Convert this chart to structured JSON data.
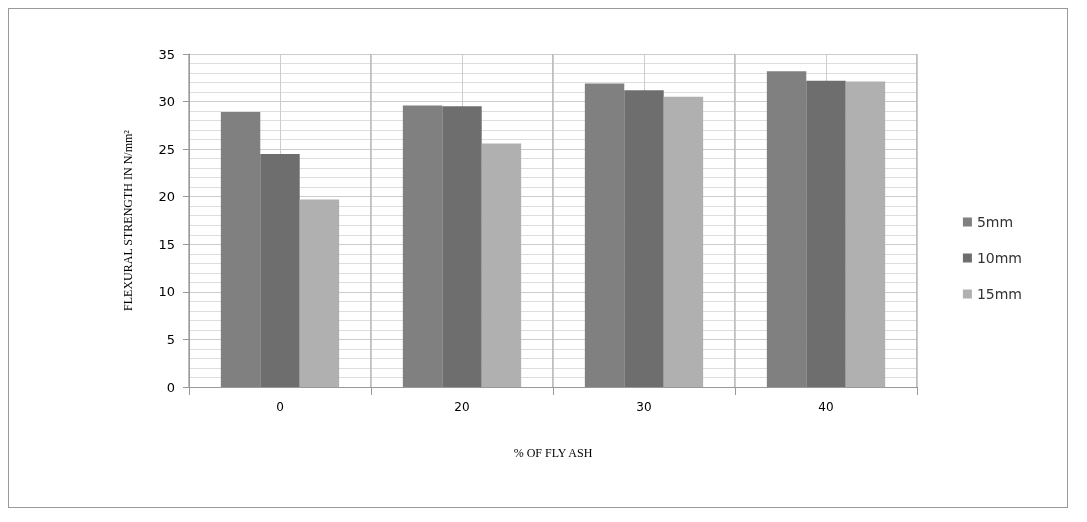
{
  "chart_data": {
    "type": "bar",
    "xlabel": "% OF FLY ASH",
    "ylabel": "FLEXURAL STRENGTH IN N/mm²",
    "categories": [
      "0",
      "20",
      "30",
      "40"
    ],
    "series": [
      {
        "name": "5mm",
        "color": "#808080",
        "values": [
          28.9,
          29.6,
          31.9,
          33.2
        ]
      },
      {
        "name": "10mm",
        "color": "#6e6e6e",
        "values": [
          24.5,
          29.5,
          31.2,
          32.2
        ]
      },
      {
        "name": "15mm",
        "color": "#b0b0b0",
        "values": [
          19.7,
          25.6,
          30.5,
          32.1
        ]
      }
    ],
    "ylim": [
      0,
      35
    ],
    "yticks": [
      0,
      5,
      10,
      15,
      20,
      25,
      30,
      35
    ],
    "grid": true,
    "legend": "right"
  }
}
